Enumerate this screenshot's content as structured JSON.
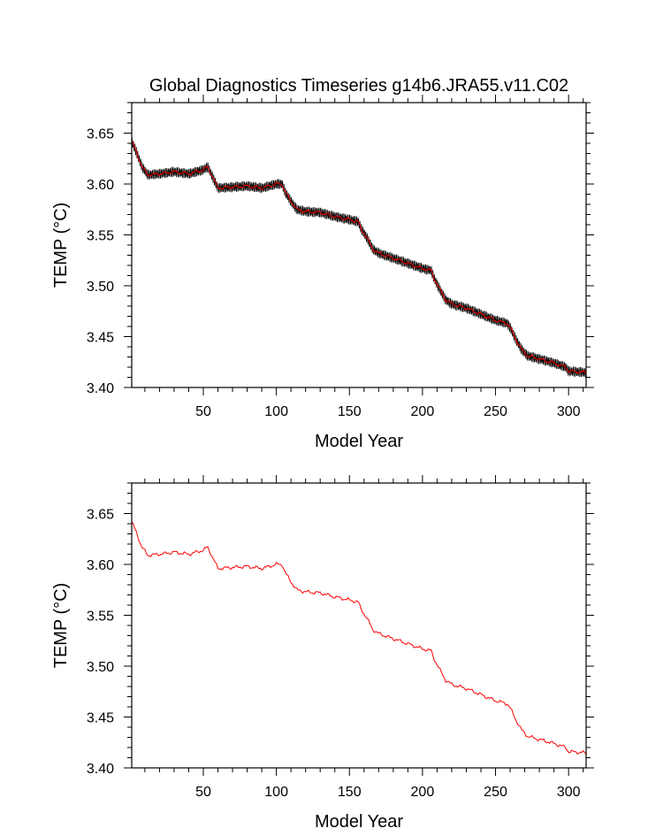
{
  "title": "Global Diagnostics Timeseries g14b6.JRA55.v11.C02",
  "colors": {
    "monthly": "#000000",
    "annual": "#ff0000",
    "axis": "#000000"
  },
  "chart_data": [
    {
      "type": "line",
      "title": "Global Diagnostics Timeseries g14b6.JRA55.v11.C02",
      "xlabel": "Model Year",
      "ylabel": "TEMP (°C)",
      "xlim": [
        1,
        312
      ],
      "ylim": [
        3.4,
        3.68
      ],
      "x_ticks": [
        50,
        100,
        150,
        200,
        250,
        300
      ],
      "x_tick_labels": [
        "50",
        "100",
        "150",
        "200",
        "250",
        "300"
      ],
      "y_ticks": [
        3.4,
        3.45,
        3.5,
        3.55,
        3.6,
        3.65
      ],
      "y_tick_labels": [
        "3.40",
        "3.45",
        "3.50",
        "3.55",
        "3.60",
        "3.65"
      ],
      "series": [
        {
          "style": "monthly",
          "color": "#000000",
          "seasonal_amplitude": 0.004
        },
        {
          "style": "annual",
          "color": "#ff0000"
        }
      ],
      "annual_anchors": {
        "x": [
          1,
          4,
          8,
          12,
          20,
          30,
          40,
          50,
          53,
          56,
          60,
          70,
          80,
          90,
          100,
          104,
          106,
          110,
          114,
          120,
          130,
          140,
          150,
          156,
          158,
          162,
          166,
          170,
          180,
          190,
          200,
          206,
          208,
          212,
          216,
          220,
          230,
          240,
          250,
          258,
          260,
          264,
          268,
          272,
          280,
          290,
          298,
          300,
          310,
          312
        ],
        "y": [
          3.642,
          3.632,
          3.617,
          3.609,
          3.61,
          3.612,
          3.61,
          3.614,
          3.617,
          3.608,
          3.596,
          3.597,
          3.598,
          3.596,
          3.6,
          3.6,
          3.592,
          3.583,
          3.575,
          3.573,
          3.572,
          3.568,
          3.565,
          3.563,
          3.556,
          3.547,
          3.536,
          3.532,
          3.527,
          3.522,
          3.517,
          3.515,
          3.507,
          3.496,
          3.486,
          3.482,
          3.478,
          3.472,
          3.466,
          3.463,
          3.459,
          3.447,
          3.437,
          3.431,
          3.428,
          3.424,
          3.42,
          3.416,
          3.415,
          3.414
        ]
      }
    },
    {
      "type": "line",
      "title": "",
      "xlabel": "Model Year",
      "ylabel": "TEMP (°C)",
      "xlim": [
        1,
        312
      ],
      "ylim": [
        3.4,
        3.68
      ],
      "x_ticks": [
        50,
        100,
        150,
        200,
        250,
        300
      ],
      "x_tick_labels": [
        "50",
        "100",
        "150",
        "200",
        "250",
        "300"
      ],
      "y_ticks": [
        3.4,
        3.45,
        3.5,
        3.55,
        3.6,
        3.65
      ],
      "y_tick_labels": [
        "3.40",
        "3.45",
        "3.50",
        "3.55",
        "3.60",
        "3.65"
      ],
      "series": [
        {
          "style": "annual",
          "color": "#ff0000"
        }
      ],
      "annual_anchors": {
        "x": [
          1,
          4,
          8,
          12,
          20,
          30,
          40,
          50,
          53,
          56,
          60,
          70,
          80,
          90,
          100,
          104,
          106,
          110,
          114,
          120,
          130,
          140,
          150,
          156,
          158,
          162,
          166,
          170,
          180,
          190,
          200,
          206,
          208,
          212,
          216,
          220,
          230,
          240,
          250,
          258,
          260,
          264,
          268,
          272,
          280,
          290,
          298,
          300,
          310,
          312
        ],
        "y": [
          3.642,
          3.632,
          3.617,
          3.609,
          3.61,
          3.612,
          3.61,
          3.614,
          3.617,
          3.608,
          3.596,
          3.597,
          3.598,
          3.596,
          3.6,
          3.6,
          3.592,
          3.583,
          3.575,
          3.573,
          3.572,
          3.568,
          3.565,
          3.563,
          3.556,
          3.547,
          3.536,
          3.532,
          3.527,
          3.522,
          3.517,
          3.515,
          3.507,
          3.496,
          3.486,
          3.482,
          3.478,
          3.472,
          3.466,
          3.463,
          3.459,
          3.447,
          3.437,
          3.431,
          3.428,
          3.424,
          3.42,
          3.416,
          3.415,
          3.414
        ]
      }
    }
  ]
}
